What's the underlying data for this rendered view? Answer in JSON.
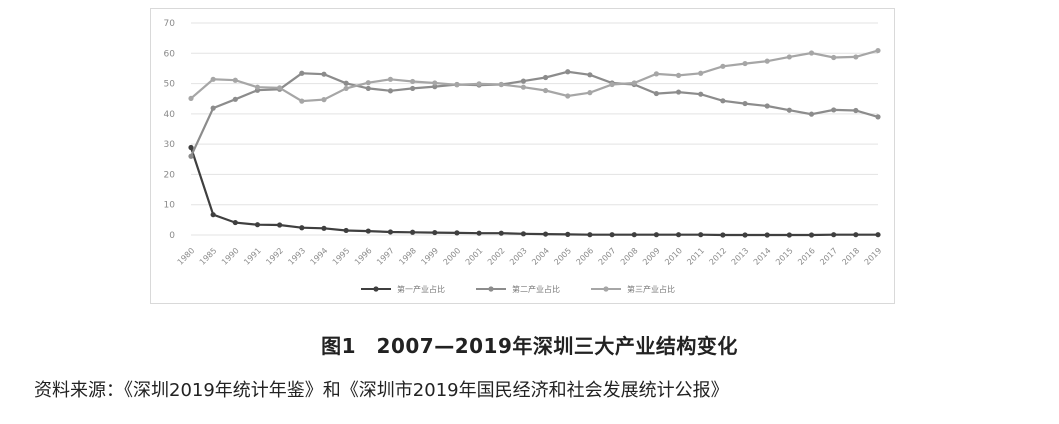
{
  "caption": "图1　2007—2019年深圳三大产业结构变化",
  "source": "资料来源：《深圳2019年统计年鉴》和《深圳市2019年国民经济和社会发展统计公报》",
  "chart_data": {
    "type": "line",
    "title": "",
    "xlabel": "",
    "ylabel": "",
    "ylim": [
      0,
      70
    ],
    "yticks": [
      0,
      10,
      20,
      30,
      40,
      50,
      60,
      70
    ],
    "grid": true,
    "legend_position": "bottom",
    "categories": [
      "1980",
      "1985",
      "1990",
      "1991",
      "1992",
      "1993",
      "1994",
      "1995",
      "1996",
      "1997",
      "1998",
      "1999",
      "2000",
      "2001",
      "2002",
      "2003",
      "2004",
      "2005",
      "2006",
      "2007",
      "2008",
      "2009",
      "2010",
      "2011",
      "2012",
      "2013",
      "2014",
      "2015",
      "2016",
      "2017",
      "2018",
      "2019"
    ],
    "series": [
      {
        "name": "第一产业占比",
        "color": "#3f3f3f",
        "values": [
          28.9,
          6.7,
          4.1,
          3.4,
          3.3,
          2.4,
          2.2,
          1.5,
          1.3,
          1.0,
          0.9,
          0.8,
          0.7,
          0.6,
          0.6,
          0.4,
          0.3,
          0.2,
          0.1,
          0.1,
          0.1,
          0.1,
          0.1,
          0.1,
          0.0,
          0.0,
          0.0,
          0.0,
          0.0,
          0.1,
          0.1,
          0.1
        ]
      },
      {
        "name": "第二产业占比",
        "color": "#8c8c8c",
        "values": [
          26.0,
          41.9,
          44.8,
          47.8,
          48.1,
          53.4,
          53.1,
          50.1,
          48.4,
          47.6,
          48.4,
          49.0,
          49.7,
          49.5,
          49.7,
          50.8,
          52.0,
          53.9,
          52.9,
          50.2,
          49.7,
          46.7,
          47.2,
          46.5,
          44.3,
          43.4,
          42.6,
          41.2,
          39.9,
          41.3,
          41.1,
          39.0
        ]
      },
      {
        "name": "第三产业占比",
        "color": "#a6a6a6",
        "values": [
          45.1,
          51.4,
          51.1,
          48.8,
          48.6,
          44.2,
          44.7,
          48.4,
          50.3,
          51.4,
          50.7,
          50.2,
          49.6,
          49.9,
          49.7,
          48.8,
          47.7,
          45.9,
          47.0,
          49.7,
          50.2,
          53.2,
          52.7,
          53.4,
          55.7,
          56.6,
          57.4,
          58.8,
          60.1,
          58.6,
          58.8,
          60.9
        ]
      }
    ]
  }
}
